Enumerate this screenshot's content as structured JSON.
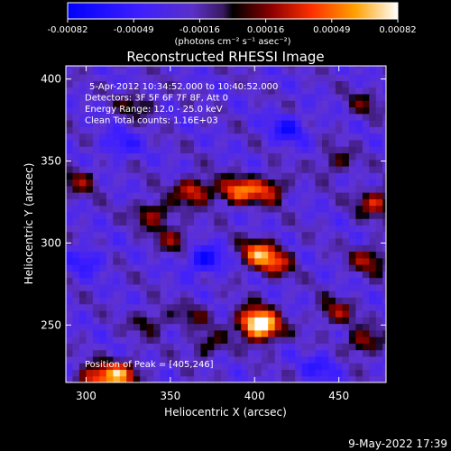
{
  "chart_data": {
    "type": "heatmap",
    "title": "Reconstructed RHESSI Image",
    "xlabel": "Heliocentric X (arcsec)",
    "ylabel": "Heliocentric Y (arcsec)",
    "xlim": [
      288,
      478
    ],
    "ylim": [
      215,
      408
    ],
    "x_ticks": [
      300,
      350,
      400,
      450
    ],
    "y_ticks": [
      250,
      300,
      350,
      400
    ],
    "colorbar": {
      "ticks": [
        "-0.00082",
        "-0.00049",
        "-0.00016",
        "0.00016",
        "0.00049",
        "0.00082"
      ],
      "unit_label": "(photons cm⁻² s⁻¹ asec⁻²)",
      "range": [
        -0.00082,
        0.00082
      ]
    },
    "annotations": [
      "5-Apr-2012 10:34:52.000 to 10:40:52.000",
      "Detectors: 3F 5F 6F 7F 8F, Att 0",
      "Energy Range: 12.0 - 25.0 keV",
      "Clean     Total counts: 1.16E+03"
    ],
    "peak_label": "Position of Peak = [405,246]",
    "peak": [
      405,
      246
    ],
    "sources": [
      {
        "x": 405,
        "y": 248,
        "value": 0.00082
      },
      {
        "x": 400,
        "y": 254,
        "value": 0.0007
      },
      {
        "x": 390,
        "y": 332,
        "value": 0.00072
      },
      {
        "x": 364,
        "y": 332,
        "value": 0.0006
      },
      {
        "x": 408,
        "y": 333,
        "value": 0.00055
      },
      {
        "x": 402,
        "y": 294,
        "value": 0.0007
      },
      {
        "x": 412,
        "y": 288,
        "value": 0.0005
      },
      {
        "x": 320,
        "y": 220,
        "value": 0.00075
      },
      {
        "x": 305,
        "y": 217,
        "value": 0.0006
      },
      {
        "x": 340,
        "y": 318,
        "value": 0.00045
      },
      {
        "x": 352,
        "y": 303,
        "value": 0.00035
      },
      {
        "x": 472,
        "y": 325,
        "value": 0.00055
      },
      {
        "x": 448,
        "y": 350,
        "value": 0.0003
      },
      {
        "x": 296,
        "y": 338,
        "value": 0.00035
      },
      {
        "x": 338,
        "y": 252,
        "value": 0.0003
      },
      {
        "x": 364,
        "y": 256,
        "value": 0.00025
      },
      {
        "x": 372,
        "y": 238,
        "value": 0.0003
      },
      {
        "x": 448,
        "y": 258,
        "value": 0.0004
      },
      {
        "x": 465,
        "y": 240,
        "value": 0.00045
      },
      {
        "x": 468,
        "y": 290,
        "value": 0.00045
      },
      {
        "x": 330,
        "y": 385,
        "value": 0.0003
      },
      {
        "x": 465,
        "y": 385,
        "value": 0.00025
      },
      {
        "x": 300,
        "y": 290,
        "value": -0.0003
      },
      {
        "x": 370,
        "y": 290,
        "value": -0.0005
      },
      {
        "x": 420,
        "y": 370,
        "value": -0.0004
      },
      {
        "x": 320,
        "y": 360,
        "value": -0.0003
      },
      {
        "x": 440,
        "y": 225,
        "value": -0.0003
      }
    ]
  },
  "footer": {
    "timestamp": "9-May-2022 17:39"
  }
}
